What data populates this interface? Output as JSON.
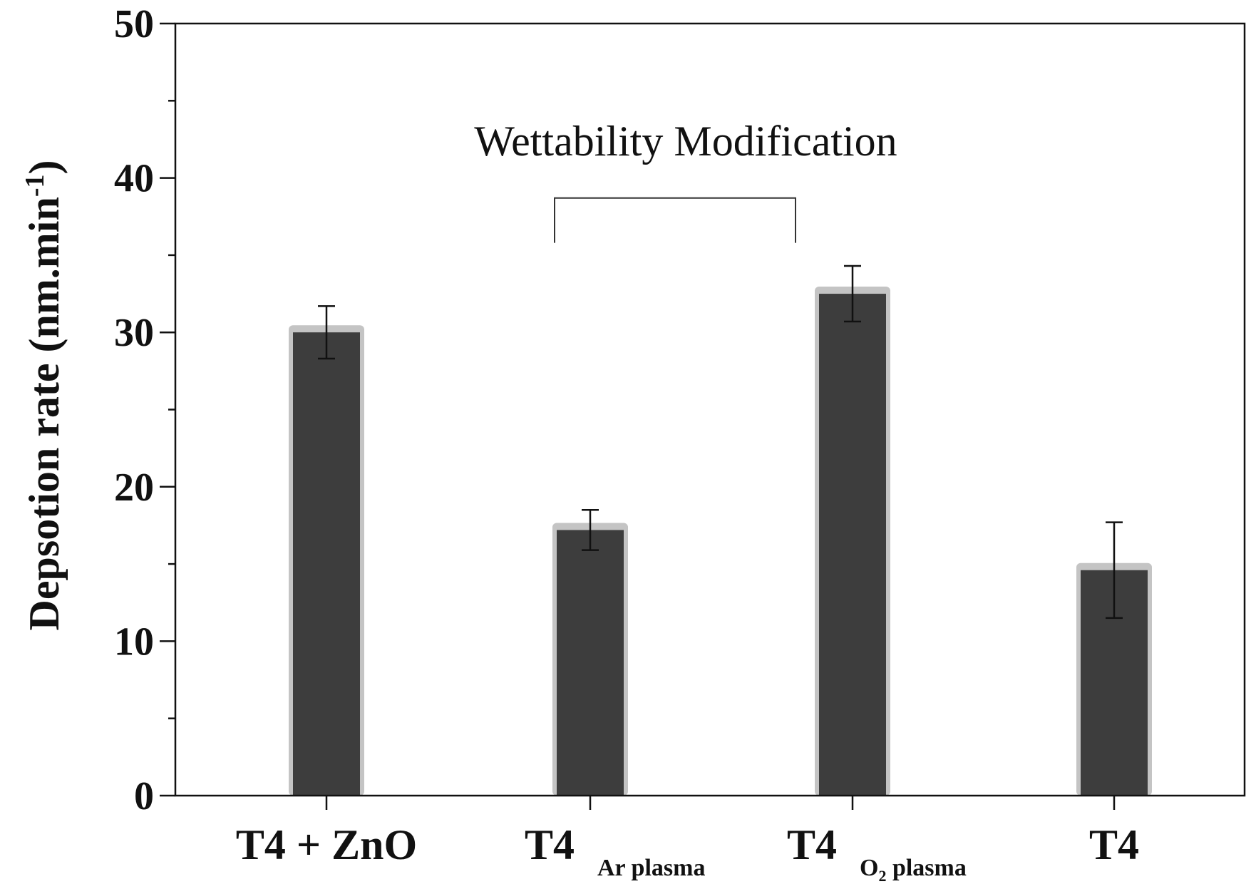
{
  "chart_data": {
    "type": "bar",
    "title": "",
    "xlabel": "",
    "ylabel": "Depsotion rate (nm.min",
    "ylabel_superscript": "-1",
    "ylabel_close": ")",
    "ylim": [
      0,
      50
    ],
    "yticks": [
      0,
      10,
      20,
      30,
      40,
      50
    ],
    "yminor_step": 5,
    "categories": [
      {
        "main": "T4 + ZnO",
        "sub": ""
      },
      {
        "main": "T4",
        "sub": "Ar plasma"
      },
      {
        "main": "T4",
        "sub": "O",
        "sub_index": "2",
        "sub_rest": " plasma"
      },
      {
        "main": "T4",
        "sub": ""
      }
    ],
    "values": [
      30.0,
      17.2,
      32.5,
      14.6
    ],
    "errors": [
      1.7,
      1.3,
      1.8,
      3.1
    ],
    "annotation": {
      "text": "Wettability Modification",
      "from_category": 1,
      "to_category": 2,
      "bracket_value": 38.7,
      "bracket_foot_value": 35.8
    },
    "colors": {
      "bar_fill": "#3d3d3d",
      "bar_outline": "#c4c4c4",
      "axis": "#111111"
    }
  }
}
